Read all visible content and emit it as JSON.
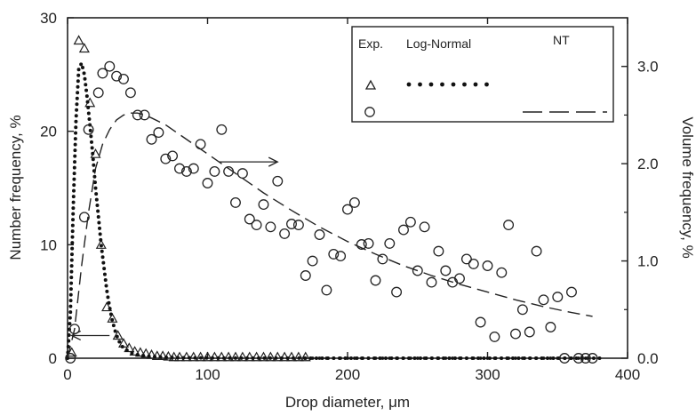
{
  "chart_data": {
    "type": "scatter",
    "xlabel": "Drop diameter, μm",
    "ylabel_left": "Number frequency, %",
    "ylabel_right": "Volume frequency, %",
    "xlim": [
      0,
      400
    ],
    "ylim_left": [
      0,
      30
    ],
    "ylim_right": [
      0,
      3.5
    ],
    "xticks": [
      "0",
      "100",
      "200",
      "300",
      "400"
    ],
    "yticks_left": [
      "0",
      "10",
      "20",
      "30"
    ],
    "yticks_right": [
      "0.0",
      "1.0",
      "2.0",
      "3.0"
    ],
    "grid": false,
    "legend": {
      "position": "top-right",
      "col_headers": [
        "Exp.",
        "Log-Normal",
        "NT"
      ]
    },
    "series": [
      {
        "axis": "left",
        "kind": "markers-triangle",
        "x": [
          3,
          8,
          12,
          16,
          20,
          24,
          28,
          32,
          36,
          40,
          44,
          48,
          52,
          56,
          60,
          64,
          68,
          72,
          76,
          80,
          85,
          90,
          95,
          100,
          105,
          110,
          115,
          120,
          125,
          130,
          135,
          140,
          145,
          150,
          155,
          160,
          165,
          170
        ],
        "y": [
          0.5,
          28,
          27.3,
          22.5,
          18,
          10,
          4.5,
          3.5,
          2,
          1.3,
          0.9,
          0.6,
          0.5,
          0.4,
          0.3,
          0.2,
          0.2,
          0.15,
          0.1,
          0.1,
          0.1,
          0.1,
          0.1,
          0.1,
          0.1,
          0.1,
          0.1,
          0.1,
          0.1,
          0.1,
          0.1,
          0.1,
          0.1,
          0.1,
          0.1,
          0.1,
          0.1,
          0.1
        ]
      },
      {
        "axis": "left",
        "kind": "dotted-curve",
        "x": [
          0,
          2,
          4,
          6,
          8,
          10,
          12,
          14,
          16,
          18,
          20,
          22,
          24,
          26,
          28,
          30,
          32,
          34,
          36,
          38,
          40,
          45,
          50,
          60,
          70,
          80,
          100,
          120,
          150,
          200,
          250,
          300,
          350,
          380
        ],
        "y": [
          0,
          4,
          13,
          21,
          25.5,
          26,
          25,
          23,
          20.5,
          18,
          15,
          12.5,
          10,
          8,
          6,
          4.5,
          3.3,
          2.4,
          1.7,
          1.2,
          0.9,
          0.5,
          0.3,
          0.15,
          0.08,
          0.05,
          0.02,
          0.01,
          0.01,
          0,
          0,
          0,
          0,
          0
        ]
      },
      {
        "axis": "right",
        "kind": "markers-circle",
        "x": [
          2,
          5,
          12,
          15,
          22,
          25,
          30,
          35,
          40,
          45,
          50,
          55,
          60,
          65,
          70,
          75,
          80,
          85,
          90,
          95,
          100,
          105,
          110,
          115,
          120,
          125,
          130,
          135,
          140,
          145,
          150,
          155,
          160,
          165,
          170,
          175,
          180,
          185,
          190,
          195,
          200,
          205,
          210,
          215,
          220,
          225,
          230,
          235,
          240,
          245,
          250,
          255,
          260,
          265,
          270,
          275,
          280,
          285,
          290,
          295,
          300,
          305,
          310,
          315,
          320,
          325,
          330,
          335,
          340,
          345,
          350,
          355,
          360,
          365,
          370,
          375
        ],
        "y": [
          0.0,
          0.3,
          1.45,
          2.35,
          2.73,
          2.93,
          3.0,
          2.9,
          2.87,
          2.73,
          2.5,
          2.5,
          2.25,
          2.32,
          2.05,
          2.08,
          1.95,
          1.92,
          1.95,
          2.2,
          1.8,
          1.92,
          2.35,
          1.92,
          1.6,
          1.9,
          1.43,
          1.37,
          1.58,
          1.35,
          1.82,
          1.28,
          1.38,
          1.37,
          0.85,
          1.0,
          1.27,
          0.7,
          1.07,
          1.05,
          1.53,
          1.6,
          1.17,
          1.18,
          0.8,
          1.02,
          1.18,
          0.68,
          1.32,
          1.4,
          0.9,
          1.35,
          0.78,
          1.1,
          0.9,
          0.78,
          0.82,
          1.02,
          0.97,
          0.37,
          0.95,
          0.22,
          0.88,
          1.37,
          0.25,
          0.5,
          0.27,
          1.1,
          0.6,
          0.32,
          0.63,
          0.0,
          0.68,
          0.0,
          0.0,
          0.0
        ]
      },
      {
        "axis": "right",
        "kind": "dashed-curve",
        "x": [
          0,
          5,
          10,
          15,
          20,
          25,
          30,
          35,
          40,
          45,
          50,
          55,
          60,
          70,
          80,
          100,
          120,
          140,
          160,
          180,
          200,
          220,
          240,
          260,
          280,
          300,
          320,
          340,
          360,
          375
        ],
        "y": [
          0.0,
          0.3,
          0.95,
          1.5,
          1.95,
          2.2,
          2.35,
          2.45,
          2.5,
          2.52,
          2.52,
          2.5,
          2.47,
          2.4,
          2.3,
          2.1,
          1.9,
          1.7,
          1.52,
          1.35,
          1.2,
          1.07,
          0.95,
          0.85,
          0.76,
          0.68,
          0.6,
          0.53,
          0.47,
          0.43
        ]
      }
    ],
    "annotations": [
      {
        "kind": "arrow",
        "direction": "right",
        "x_from": 108,
        "x_to": 150,
        "y_left": 17.3
      },
      {
        "kind": "arrow",
        "direction": "left",
        "x_from": 30,
        "x_to": 3,
        "y_left": 2.0
      }
    ]
  }
}
